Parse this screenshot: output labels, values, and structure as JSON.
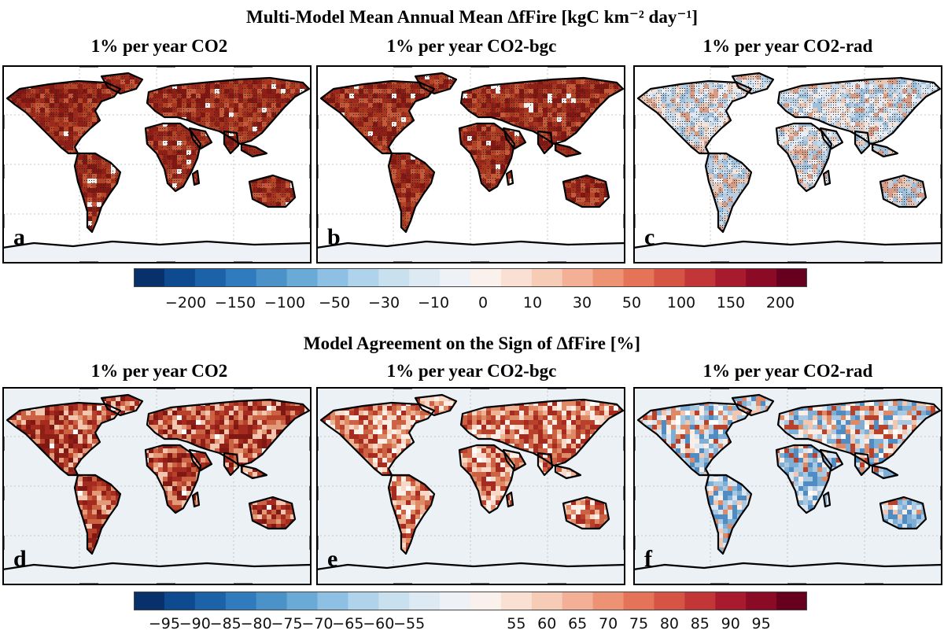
{
  "top_title": "Multi-Model Mean Annual Mean ΔfFire [kgC km⁻² day⁻¹]",
  "bottom_title": "Model Agreement on the Sign of ΔfFire [%]",
  "panels": [
    {
      "letter": "a",
      "title": "1% per year CO2",
      "scheme": "warm_strong",
      "stippled": true
    },
    {
      "letter": "b",
      "title": "1% per year CO2-bgc",
      "scheme": "warm_strong",
      "stippled": true
    },
    {
      "letter": "c",
      "title": "1% per year CO2-rad",
      "scheme": "mixed_cool",
      "stippled": true
    },
    {
      "letter": "d",
      "title": "1% per year CO2",
      "scheme": "warm_agree",
      "stippled": false
    },
    {
      "letter": "e",
      "title": "1% per year CO2-bgc",
      "scheme": "warm_agree_light",
      "stippled": false
    },
    {
      "letter": "f",
      "title": "1% per year CO2-rad",
      "scheme": "mixed_agree",
      "stippled": false
    }
  ],
  "colorbar_top": {
    "colors": [
      "#08306b",
      "#0d4a8f",
      "#1c62a8",
      "#2f7bbd",
      "#4a92c8",
      "#6aaad6",
      "#8dc0e2",
      "#aed3ea",
      "#c9e0ee",
      "#dde9f3",
      "#eef2f7",
      "#fbf1ec",
      "#f9e0d2",
      "#f7ccb6",
      "#f3b096",
      "#ee9274",
      "#e57357",
      "#d65443",
      "#c23638",
      "#a81b2f",
      "#8b0a26",
      "#67001f"
    ],
    "ticks": [
      "−200",
      "−150",
      "−100",
      "−50",
      "−30",
      "−10",
      "0",
      "10",
      "30",
      "50",
      "100",
      "150",
      "200"
    ]
  },
  "colorbar_bottom": {
    "colors": [
      "#08306b",
      "#0d4a8f",
      "#1c62a8",
      "#2f7bbd",
      "#4a92c8",
      "#6aaad6",
      "#8dc0e2",
      "#aed3ea",
      "#c9e0ee",
      "#dde9f3",
      "#eef2f7",
      "#fbf1ec",
      "#f9e0d2",
      "#f7ccb6",
      "#f3b096",
      "#ee9274",
      "#e57357",
      "#d65443",
      "#c23638",
      "#a81b2f",
      "#8b0a26",
      "#67001f"
    ],
    "ticks": [
      "−95",
      "−90",
      "−85",
      "−80",
      "−75",
      "−70",
      "−65",
      "−60",
      "−55",
      "55",
      "60",
      "65",
      "70",
      "75",
      "80",
      "85",
      "90",
      "95"
    ]
  }
}
